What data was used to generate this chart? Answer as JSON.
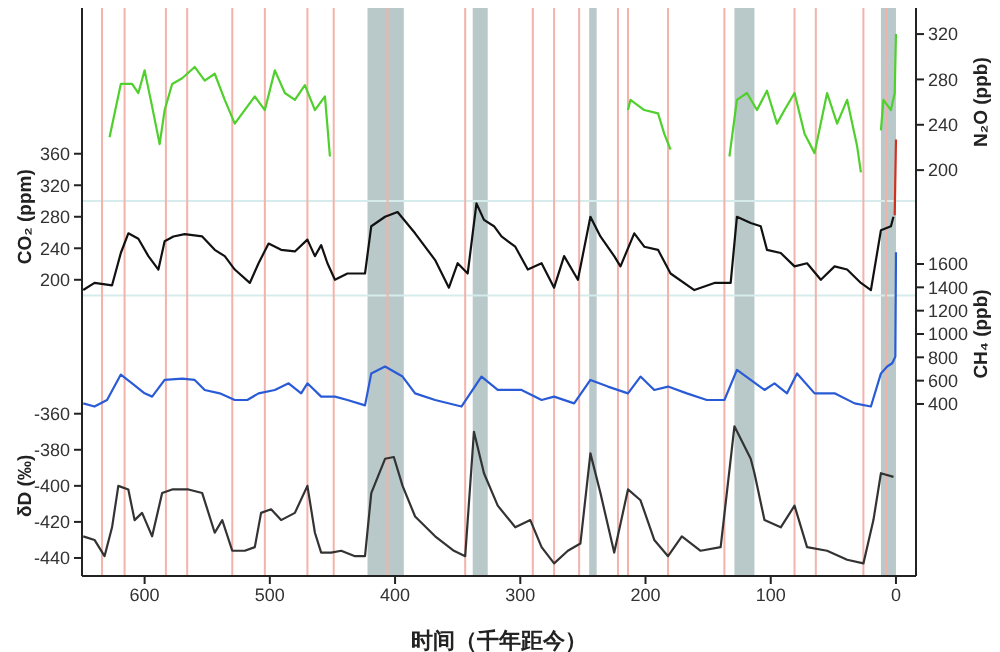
{
  "chart_data": [
    {
      "type": "line",
      "xlabel": "时间（千年距今）",
      "ylabel": "CO₂ (ppm)",
      "y2label": "N₂O (ppb)",
      "xlim": [
        650,
        -16
      ],
      "xticks": [
        600,
        500,
        400,
        300,
        200,
        100,
        0
      ],
      "ylim": [
        -176,
        545
      ],
      "yticks": [
        200,
        240,
        280,
        320,
        360
      ],
      "y2lim": [
        -158,
        343
      ],
      "y2ticks": [
        200,
        240,
        280,
        320
      ],
      "series": [
        {
          "axis": "y2",
          "color": "#4fd02c",
          "x": [
            628,
            619,
            610,
            605,
            600,
            594,
            588,
            584,
            578,
            570,
            560,
            552,
            544,
            536,
            528,
            512,
            504,
            496,
            488,
            480,
            472,
            464,
            456,
            452,
            330,
            214,
            212,
            201,
            190,
            185,
            180,
            160,
            133,
            127,
            119,
            111,
            103,
            95,
            89,
            81,
            73,
            65,
            55,
            47,
            39,
            31,
            28,
            20,
            12,
            10,
            4,
            1,
            0
          ],
          "values": [
            229,
            276,
            276,
            268,
            288,
            256,
            223,
            253,
            276,
            281,
            291,
            279,
            285,
            262,
            241,
            265,
            253,
            288,
            268,
            262,
            275,
            253,
            265,
            212,
            null,
            253,
            262,
            253,
            250,
            232,
            218,
            null,
            212,
            262,
            268,
            253,
            270,
            241,
            253,
            268,
            232,
            215,
            268,
            241,
            262,
            221,
            198,
            null,
            235,
            262,
            253,
            268,
            320
          ]
        },
        {
          "color": "#111111",
          "x": [
            649,
            640,
            626,
            619,
            613,
            605,
            597,
            589,
            584,
            577,
            568,
            554,
            544,
            536,
            528,
            516,
            509,
            501,
            491,
            480,
            470,
            464,
            459,
            454,
            448,
            438,
            424,
            419,
            408,
            398,
            384,
            368,
            357,
            350,
            342,
            335,
            329,
            321,
            315,
            304,
            294,
            283,
            273,
            265,
            254,
            244,
            236,
            225,
            220,
            209,
            201,
            190,
            180,
            161,
            145,
            132,
            127,
            116,
            108,
            103,
            92,
            81,
            71,
            60,
            49,
            39,
            28,
            20,
            12,
            4,
            2
          ],
          "values": [
            187,
            196,
            193,
            234,
            259,
            252,
            230,
            213,
            249,
            255,
            258,
            255,
            238,
            230,
            213,
            196,
            221,
            246,
            238,
            236,
            251,
            230,
            244,
            221,
            200,
            208,
            208,
            268,
            280,
            286,
            259,
            225,
            190,
            221,
            208,
            297,
            276,
            268,
            255,
            242,
            213,
            221,
            190,
            230,
            200,
            280,
            255,
            230,
            217,
            259,
            242,
            238,
            208,
            187,
            196,
            196,
            280,
            272,
            268,
            238,
            234,
            217,
            221,
            200,
            217,
            213,
            196,
            187,
            263,
            268,
            280
          ]
        },
        {
          "color": "#d03020",
          "x": [
            1,
            0
          ],
          "values": [
            282,
            378
          ]
        }
      ],
      "bands": [
        {
          "axis": "x",
          "from": 422,
          "to": 393,
          "color": "#b9c9c9"
        },
        {
          "axis": "x",
          "from": 338,
          "to": 326,
          "color": "#b9c9c9"
        },
        {
          "axis": "x",
          "from": 245,
          "to": 239,
          "color": "#b9c9c9"
        },
        {
          "axis": "x",
          "from": 129,
          "to": 113,
          "color": "#b9c9c9"
        },
        {
          "axis": "x",
          "from": 12,
          "to": 0,
          "color": "#b9c9c9"
        }
      ],
      "ref_lines": [
        {
          "axis": "y",
          "value": 300,
          "color": "#d6ecec"
        },
        {
          "axis": "y",
          "value": 180,
          "color": "#d6ecec"
        },
        {
          "axis": "x",
          "value": 634,
          "color": "#f3b2aa"
        },
        {
          "axis": "x",
          "value": 616,
          "color": "#f3b2aa"
        },
        {
          "axis": "x",
          "value": 583,
          "color": "#f3b2aa"
        },
        {
          "axis": "x",
          "value": 566,
          "color": "#f3b2aa"
        },
        {
          "axis": "x",
          "value": 530,
          "color": "#f3b2aa"
        },
        {
          "axis": "x",
          "value": 504,
          "color": "#f3b2aa"
        },
        {
          "axis": "x",
          "value": 470,
          "color": "#f3b2aa"
        },
        {
          "axis": "x",
          "value": 449,
          "color": "#f3b2aa"
        },
        {
          "axis": "x",
          "value": 406,
          "color": "#f3b2aa"
        },
        {
          "axis": "x",
          "value": 344,
          "color": "#f3b2aa"
        },
        {
          "axis": "x",
          "value": 290,
          "color": "#f3b2aa"
        },
        {
          "axis": "x",
          "value": 273,
          "color": "#f3b2aa"
        },
        {
          "axis": "x",
          "value": 253,
          "color": "#f3b2aa"
        },
        {
          "axis": "x",
          "value": 222,
          "color": "#f3b2aa"
        },
        {
          "axis": "x",
          "value": 214,
          "color": "#f3b2aa"
        },
        {
          "axis": "x",
          "value": 182,
          "color": "#f3b2aa"
        },
        {
          "axis": "x",
          "value": 137,
          "color": "#f3b2aa"
        },
        {
          "axis": "x",
          "value": 81,
          "color": "#f3b2aa"
        },
        {
          "axis": "x",
          "value": 64,
          "color": "#f3b2aa"
        },
        {
          "axis": "x",
          "value": 26,
          "color": "#f3b2aa"
        },
        {
          "axis": "x",
          "value": 8,
          "color": "#f3b2aa"
        }
      ],
      "marker": "none",
      "line_style": "solid"
    },
    {
      "type": "line",
      "ylabel": "δD (‰)",
      "y2label": "CH₄ (ppb)",
      "tick_labels": "y",
      "xlim": [
        650,
        -16
      ],
      "ylim": [
        -450,
        -135
      ],
      "yticks": [
        -440,
        -420,
        -400,
        -380,
        -360
      ],
      "y2lim": [
        -1075,
        3795
      ],
      "y2ticks": [
        400,
        600,
        800,
        1000,
        1200,
        1400,
        1600
      ],
      "series": [
        {
          "axis": "y2",
          "color": "#2a5bd6",
          "x": [
            649,
            640,
            630,
            619,
            610,
            600,
            594,
            584,
            570,
            560,
            552,
            540,
            528,
            518,
            509,
            496,
            485,
            475,
            470,
            459,
            448,
            438,
            424,
            419,
            408,
            394,
            384,
            368,
            347,
            331,
            318,
            299,
            283,
            273,
            257,
            244,
            230,
            214,
            204,
            193,
            182,
            167,
            151,
            137,
            127,
            116,
            105,
            97,
            87,
            79,
            65,
            49,
            33,
            20,
            12,
            7,
            3,
            0.5,
            0
          ],
          "values": [
            405,
            378,
            434,
            652,
            577,
            491,
            463,
            606,
            618,
            606,
            520,
            491,
            434,
            434,
            491,
            520,
            577,
            491,
            577,
            463,
            463,
            434,
            388,
            662,
            721,
            635,
            491,
            434,
            378,
            635,
            520,
            520,
            434,
            463,
            405,
            606,
            549,
            491,
            635,
            520,
            549,
            491,
            434,
            434,
            692,
            606,
            520,
            577,
            491,
            662,
            491,
            491,
            405,
            378,
            662,
            721,
            749,
            806,
            1700
          ]
        },
        {
          "color": "#333333",
          "x": [
            649,
            640,
            632,
            626,
            621,
            613,
            608,
            602,
            594,
            586,
            578,
            565,
            554,
            544,
            538,
            530,
            520,
            512,
            507,
            499,
            491,
            480,
            470,
            464,
            459,
            451,
            443,
            432,
            424,
            419,
            408,
            401,
            394,
            384,
            368,
            353,
            344,
            337,
            329,
            318,
            304,
            292,
            283,
            273,
            262,
            252,
            244,
            236,
            225,
            214,
            204,
            193,
            182,
            171,
            156,
            140,
            129,
            116,
            113,
            105,
            92,
            81,
            71,
            55,
            39,
            26,
            18,
            12,
            2
          ],
          "values": [
            -428,
            -430,
            -439,
            -423,
            -400,
            -402,
            -419,
            -415,
            -428,
            -404,
            -402,
            -402,
            -404,
            -426,
            -419,
            -436,
            -436,
            -434,
            -415,
            -413,
            -419,
            -415,
            -400,
            -426,
            -437,
            -437,
            -436,
            -439,
            -439,
            -404,
            -385,
            -384,
            -400,
            -417,
            -428,
            -436,
            -439,
            -370,
            -393,
            -411,
            -423,
            -419,
            -434,
            -443,
            -436,
            -432,
            -382,
            -404,
            -437,
            -402,
            -408,
            -430,
            -439,
            -428,
            -436,
            -434,
            -367,
            -385,
            -393,
            -419,
            -423,
            -411,
            -434,
            -436,
            -441,
            -443,
            -419,
            -393,
            -395
          ]
        }
      ],
      "marker": "none",
      "line_style": "solid"
    }
  ]
}
